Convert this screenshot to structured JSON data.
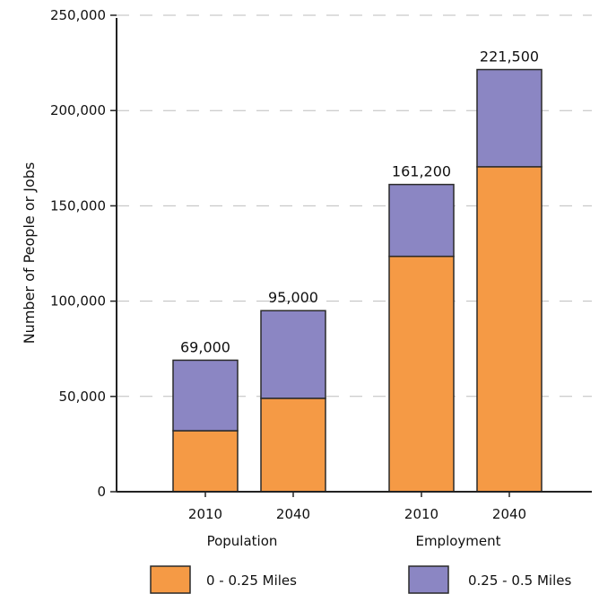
{
  "chart_data": {
    "type": "bar",
    "stacked": true,
    "ylabel": "Number of People or Jobs",
    "ylim": [
      0,
      250000
    ],
    "yticks": [
      0,
      50000,
      100000,
      150000,
      200000,
      250000
    ],
    "ytick_labels": [
      "0",
      "50,000",
      "100,000",
      "150,000",
      "200,000",
      "250,000"
    ],
    "grid": "horizontal-dashed",
    "legend_position": "bottom",
    "groups": [
      {
        "label": "Population",
        "categories": [
          "2010",
          "2040"
        ]
      },
      {
        "label": "Employment",
        "categories": [
          "2010",
          "2040"
        ]
      }
    ],
    "series": [
      {
        "name": "0 - 0.25 Miles",
        "color": "#f59a45",
        "values": [
          32000,
          49000,
          123500,
          170500
        ]
      },
      {
        "name": "0.25 - 0.5 Miles",
        "color": "#8b86c3",
        "values": [
          37000,
          46000,
          37700,
          51000
        ]
      }
    ],
    "totals": [
      69000,
      95000,
      161200,
      221500
    ],
    "total_labels": [
      "69,000",
      "95,000",
      "161,200",
      "221,500"
    ]
  }
}
